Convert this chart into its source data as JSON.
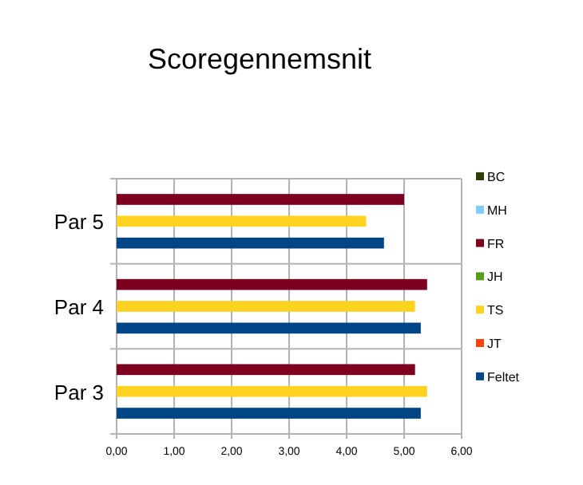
{
  "chart_data": {
    "type": "bar",
    "orientation": "horizontal",
    "title": "Scoregennemsnit",
    "categories": [
      "Par 5",
      "Par 4",
      "Par 3"
    ],
    "series": [
      {
        "name": "BC",
        "color": "#2f3d0a",
        "values": [
          null,
          null,
          null
        ]
      },
      {
        "name": "MH",
        "color": "#83caff",
        "values": [
          null,
          null,
          null
        ]
      },
      {
        "name": "FR",
        "color": "#7e0021",
        "values": [
          5.0,
          5.4,
          5.19
        ]
      },
      {
        "name": "JH",
        "color": "#579d1c",
        "values": [
          null,
          null,
          null
        ]
      },
      {
        "name": "TS",
        "color": "#ffd320",
        "values": [
          4.34,
          5.19,
          5.4
        ]
      },
      {
        "name": "JT",
        "color": "#ff420e",
        "values": [
          null,
          null,
          null
        ]
      },
      {
        "name": "Feltet",
        "color": "#004586",
        "values": [
          4.65,
          5.29,
          5.29
        ]
      }
    ],
    "xlim": [
      0,
      6
    ],
    "xticks": [
      {
        "value": 0,
        "label": "0,00"
      },
      {
        "value": 1,
        "label": "1,00"
      },
      {
        "value": 2,
        "label": "2,00"
      },
      {
        "value": 3,
        "label": "3,00"
      },
      {
        "value": 4,
        "label": "4,00"
      },
      {
        "value": 5,
        "label": "5,00"
      },
      {
        "value": 6,
        "label": "6,00"
      }
    ],
    "grid": true,
    "legend": "right"
  }
}
